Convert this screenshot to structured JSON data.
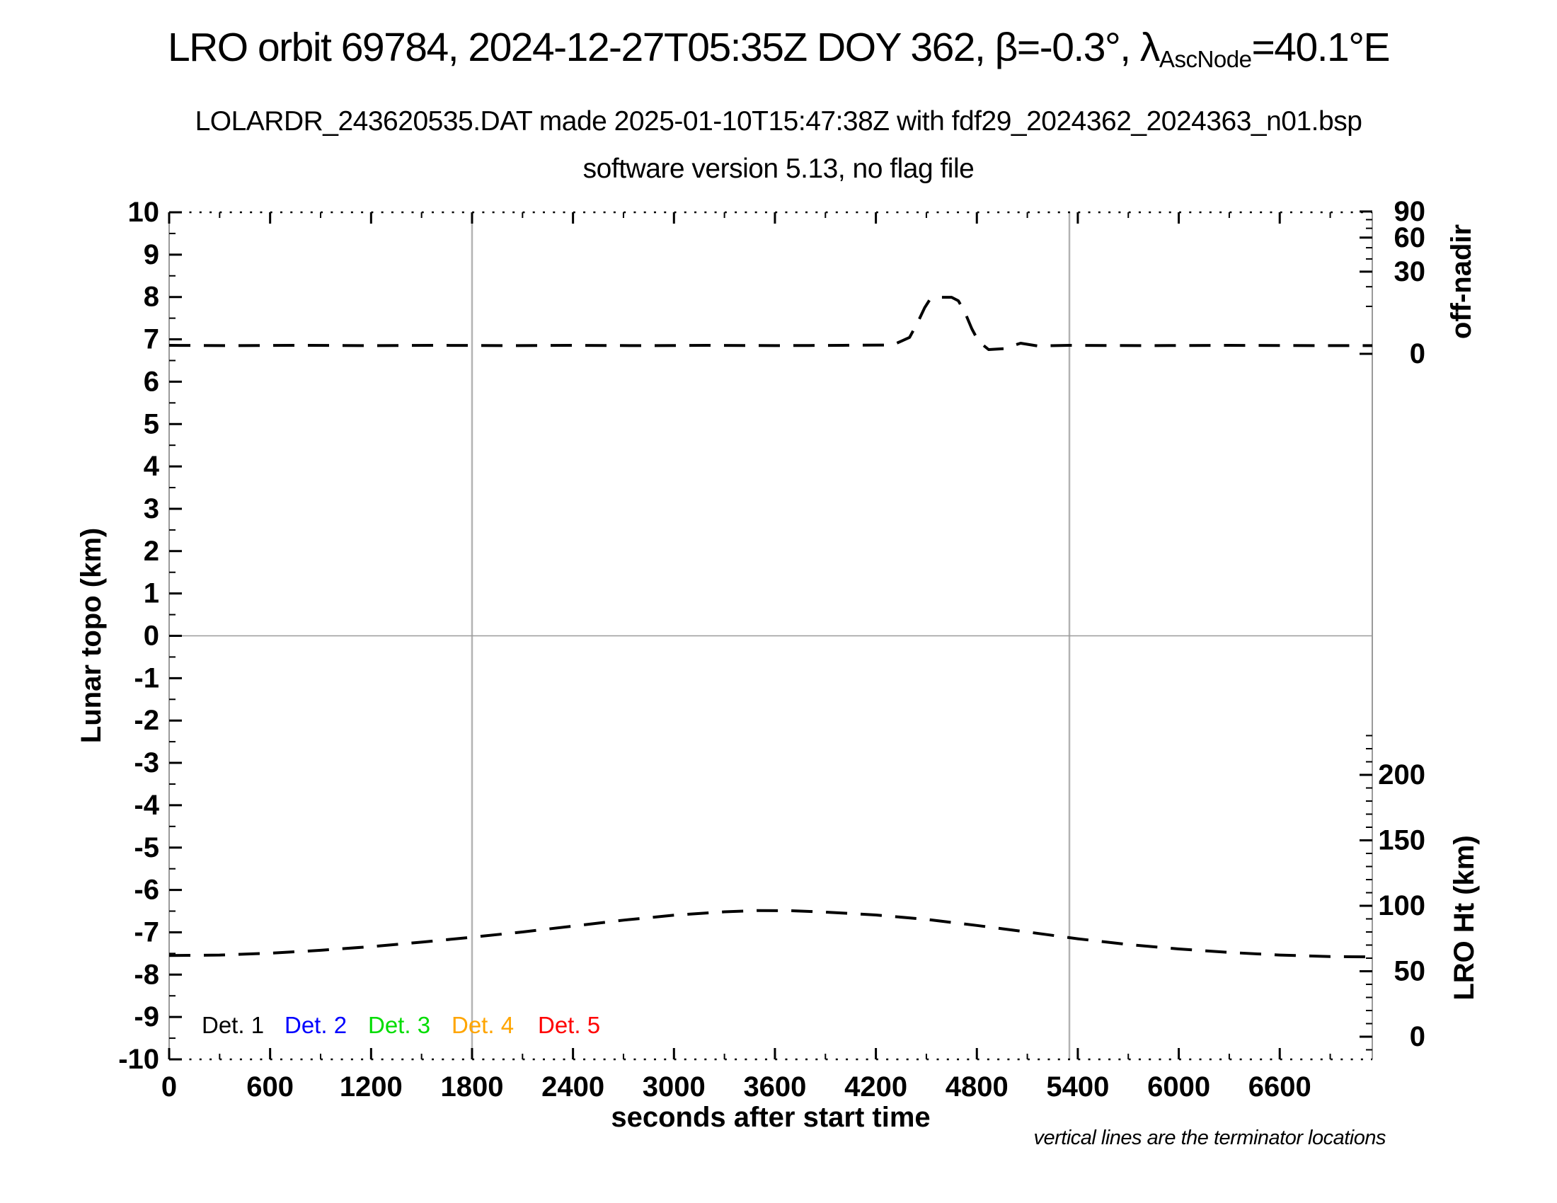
{
  "titles": {
    "main_prefix": "LRO orbit 69784, 2024-12-27T05:35Z DOY 362, β=-0.3°, λ",
    "main_subscript": "AscNode",
    "main_suffix": "=40.1°E",
    "line2": "LOLARDR_243620535.DAT made 2025-01-10T15:47:38Z with fdf29_2024362_2024363_n01.bsp",
    "line3": "software version 5.13, no flag file"
  },
  "note": "vertical lines are the terminator locations",
  "legend": {
    "items": [
      {
        "label": "Det. 1",
        "color": "#000000",
        "x": 285
      },
      {
        "label": "Det. 2",
        "color": "#0000ff",
        "x": 402
      },
      {
        "label": "Det. 3",
        "color": "#00dd00",
        "x": 520
      },
      {
        "label": "Det. 4",
        "color": "#ffa500",
        "x": 638
      },
      {
        "label": "Det. 5",
        "color": "#ff0000",
        "x": 760
      }
    ]
  },
  "chart_data": {
    "type": "line",
    "title": "LRO orbit 69784, 2024-12-27T05:35Z DOY 362, β=-0.3°, λAscNode=40.1°E",
    "xlabel": "seconds after start time",
    "x_range": [
      0,
      7150
    ],
    "x_major_tick_step": 600,
    "x_major_ticks": [
      0,
      600,
      1200,
      1800,
      2400,
      3000,
      3600,
      4200,
      4800,
      5400,
      6000,
      6600
    ],
    "left_axis": {
      "label": "Lunar topo (km)",
      "range": [
        -10,
        10
      ],
      "major_step": 1,
      "minor_step": 0.5
    },
    "right_axis_top": {
      "label": "off-nadir",
      "scale": "sqrt",
      "major_ticks": [
        90,
        60,
        30,
        0
      ],
      "minor_ticks": [
        80,
        70,
        50,
        40,
        20,
        10
      ],
      "unit": "deg"
    },
    "right_axis_bottom": {
      "label": "LRO Ht (km)",
      "major_ticks": [
        200,
        150,
        100,
        50,
        0
      ],
      "minor_step": 10,
      "range_shown": [
        -10,
        230
      ]
    },
    "grid": {
      "horizontal_zero_line": 0,
      "terminator_lines_x": [
        1800,
        5350
      ]
    },
    "series": [
      {
        "name": "spacecraft off-nadir angle",
        "axis": "off-nadir",
        "color": "#000000",
        "style": "dashed",
        "points": [
          [
            0,
            0.32
          ],
          [
            400,
            0.3
          ],
          [
            800,
            0.32
          ],
          [
            1200,
            0.3
          ],
          [
            1600,
            0.32
          ],
          [
            2000,
            0.3
          ],
          [
            2400,
            0.32
          ],
          [
            2800,
            0.3
          ],
          [
            3200,
            0.32
          ],
          [
            3600,
            0.3
          ],
          [
            4000,
            0.32
          ],
          [
            4300,
            0.35
          ],
          [
            4400,
            1.2
          ],
          [
            4450,
            4.5
          ],
          [
            4490,
            9.5
          ],
          [
            4520,
            13.0
          ],
          [
            4550,
            14.2
          ],
          [
            4650,
            14.2
          ],
          [
            4690,
            12.5
          ],
          [
            4730,
            7.5
          ],
          [
            4770,
            2.8
          ],
          [
            4810,
            0.7
          ],
          [
            4870,
            0.08
          ],
          [
            4960,
            0.12
          ],
          [
            5060,
            0.5
          ],
          [
            5160,
            0.28
          ],
          [
            5350,
            0.32
          ],
          [
            5800,
            0.3
          ],
          [
            6300,
            0.32
          ],
          [
            6800,
            0.3
          ],
          [
            7150,
            0.3
          ]
        ]
      },
      {
        "name": "LRO height",
        "axis": "LRO Ht (km)",
        "color": "#000000",
        "style": "dashed",
        "points": [
          [
            0,
            62
          ],
          [
            300,
            62.4
          ],
          [
            600,
            63.8
          ],
          [
            900,
            66
          ],
          [
            1200,
            68.8
          ],
          [
            1500,
            72.2
          ],
          [
            1800,
            76
          ],
          [
            2100,
            80
          ],
          [
            2400,
            84.5
          ],
          [
            2700,
            89
          ],
          [
            3000,
            92.8
          ],
          [
            3300,
            95.4
          ],
          [
            3500,
            96.4
          ],
          [
            3700,
            96.2
          ],
          [
            3900,
            95.2
          ],
          [
            4200,
            93
          ],
          [
            4500,
            89.6
          ],
          [
            4800,
            85
          ],
          [
            5100,
            80
          ],
          [
            5400,
            74.8
          ],
          [
            5700,
            70.4
          ],
          [
            6000,
            67
          ],
          [
            6300,
            64.4
          ],
          [
            6600,
            62.4
          ],
          [
            6900,
            61.2
          ],
          [
            7150,
            61
          ]
        ]
      }
    ],
    "legend_position": "bottom-left-inside",
    "annotation": "vertical lines are the terminator locations"
  }
}
